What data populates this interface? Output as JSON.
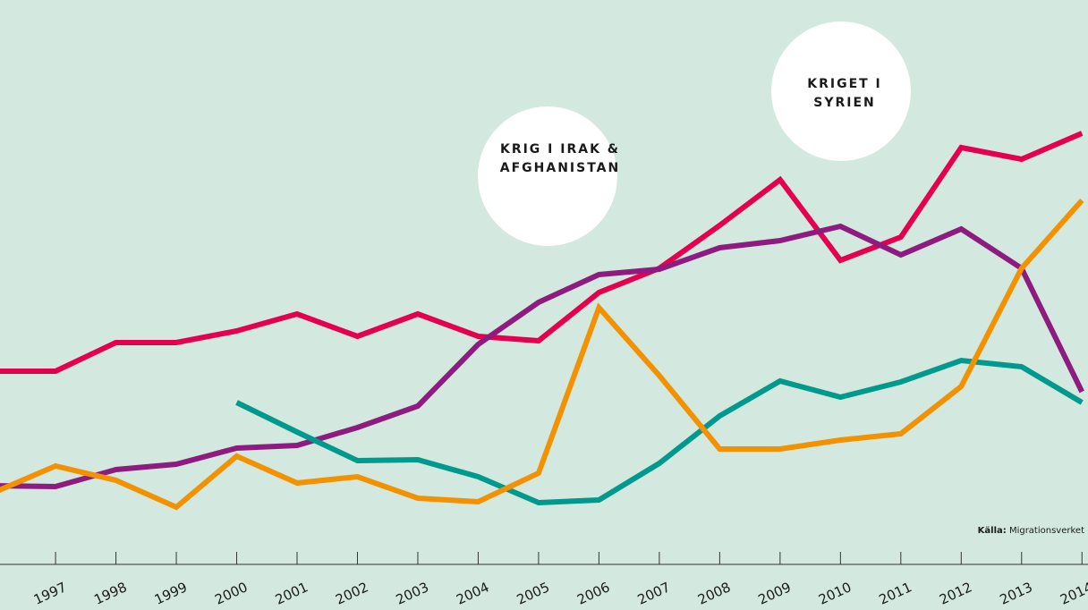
{
  "chart_data": {
    "type": "line",
    "x": [
      1996,
      1997,
      1998,
      1999,
      2000,
      2001,
      2002,
      2003,
      2004,
      2005,
      2006,
      2007,
      2008,
      2009,
      2010,
      2011,
      2012,
      2013,
      2014
    ],
    "xlim": [
      1996.08,
      2014.1
    ],
    "xticks": [
      1997,
      1998,
      1999,
      2000,
      2001,
      2002,
      2003,
      2004,
      2005,
      2006,
      2007,
      2008,
      2009,
      2010,
      2011,
      2012,
      2013,
      2014
    ],
    "ylim": [
      0,
      600
    ],
    "series": [
      {
        "color": "#e4004e",
        "values": [
          225,
          225,
          257,
          257,
          270,
          289,
          264,
          289,
          264,
          259,
          313,
          340,
          388,
          439,
          349,
          375,
          475,
          462,
          491
        ]
      },
      {
        "color": "#8e1b7f",
        "values": [
          97,
          96,
          115,
          121,
          139,
          142,
          162,
          186,
          255,
          302,
          333,
          339,
          363,
          371,
          387,
          355,
          384,
          340,
          202
        ]
      },
      {
        "color": "#00998d",
        "values": [
          null,
          null,
          null,
          null,
          190,
          157,
          125,
          126,
          107,
          78,
          81,
          122,
          175,
          214,
          196,
          213,
          237,
          230,
          190
        ]
      },
      {
        "color": "#f29200",
        "values": [
          90,
          119,
          103,
          73,
          130,
          100,
          107,
          83,
          79,
          111,
          296,
          220,
          138,
          138,
          148,
          155,
          208,
          340,
          416
        ]
      }
    ],
    "annotations": [
      {
        "lines": [
          "KRIG I IRAK &",
          "AFGHANISTAN"
        ]
      },
      {
        "lines": [
          "KRIGET I",
          "SYRIEN"
        ]
      }
    ],
    "source_label": "Källa:",
    "source": "Migrationsverket"
  }
}
